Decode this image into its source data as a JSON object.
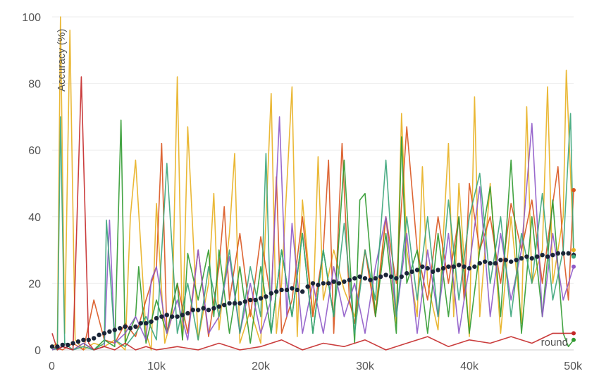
{
  "chart_data": {
    "type": "line",
    "ylabel": "Accuracy (%)",
    "xlabel": "round",
    "xlim": [
      0,
      50000
    ],
    "ylim": [
      0,
      100
    ],
    "x_ticks": [
      {
        "value": 0,
        "label": "0"
      },
      {
        "value": 10000,
        "label": "10k"
      },
      {
        "value": 20000,
        "label": "20k"
      },
      {
        "value": 30000,
        "label": "30k"
      },
      {
        "value": 40000,
        "label": "40k"
      },
      {
        "value": 50000,
        "label": "50k"
      }
    ],
    "y_ticks": [
      {
        "value": 0,
        "label": "0"
      },
      {
        "value": 20,
        "label": "20"
      },
      {
        "value": 40,
        "label": "40"
      },
      {
        "value": 60,
        "label": "60"
      },
      {
        "value": 80,
        "label": "80"
      },
      {
        "value": 100,
        "label": "100"
      }
    ],
    "grid": true,
    "series": [
      {
        "color": "#e8b020",
        "x": [
          0,
          500,
          800,
          1200,
          1700,
          2200,
          3000,
          4000,
          5000,
          6000,
          7000,
          7500,
          8000,
          9000,
          9500,
          10000,
          10800,
          11500,
          12000,
          12500,
          13000,
          14000,
          15000,
          15500,
          16000,
          17000,
          17500,
          18000,
          19000,
          20000,
          21000,
          21500,
          22000,
          23000,
          23500,
          24000,
          25000,
          25500,
          26000,
          27000,
          28000,
          29000,
          30000,
          31000,
          32000,
          33000,
          33500,
          34000,
          35000,
          35500,
          36000,
          37000,
          38000,
          38500,
          39000,
          40000,
          40500,
          41000,
          42000,
          43000,
          44000,
          45000,
          45500,
          46000,
          47000,
          47500,
          48000,
          49000,
          49300,
          50000
        ],
        "y": [
          1,
          2,
          100,
          5,
          96,
          3,
          0,
          2,
          1,
          3,
          0,
          40,
          57,
          5,
          0,
          44,
          2,
          10,
          82,
          3,
          67,
          3,
          20,
          47,
          6,
          35,
          59,
          2,
          12,
          2,
          77,
          5,
          20,
          79,
          4,
          45,
          10,
          58,
          15,
          30,
          18,
          10,
          30,
          12,
          40,
          8,
          71,
          30,
          10,
          55,
          20,
          6,
          62,
          10,
          50,
          4,
          76,
          10,
          50,
          5,
          40,
          8,
          73,
          20,
          30,
          79,
          20,
          40,
          84,
          30
        ]
      },
      {
        "color": "#d9541e",
        "x": [
          0,
          1000,
          2000,
          3000,
          4000,
          5000,
          6000,
          7000,
          8000,
          9000,
          10000,
          10500,
          11000,
          12000,
          13000,
          14000,
          15000,
          16000,
          16500,
          17000,
          18000,
          19000,
          20000,
          21000,
          21500,
          22000,
          23000,
          24000,
          25000,
          26000,
          26500,
          27000,
          27800,
          28500,
          29000,
          30000,
          31000,
          32000,
          33000,
          34000,
          35000,
          36000,
          37000,
          38000,
          39000,
          39500,
          40000,
          41000,
          42000,
          43000,
          44000,
          45000,
          46000,
          47000,
          48000,
          48500,
          49000,
          49500,
          50000
        ],
        "y": [
          1,
          0,
          2,
          0,
          15,
          3,
          2,
          8,
          4,
          15,
          25,
          62,
          5,
          20,
          5,
          30,
          4,
          25,
          43,
          15,
          35,
          10,
          34,
          15,
          52,
          5,
          15,
          40,
          10,
          30,
          57,
          5,
          62,
          15,
          8,
          30,
          10,
          40,
          20,
          67,
          30,
          15,
          40,
          20,
          40,
          15,
          50,
          30,
          40,
          20,
          44,
          30,
          45,
          20,
          44,
          55,
          30,
          15,
          48
        ]
      },
      {
        "color": "#2f9a2f",
        "x": [
          0,
          1000,
          2000,
          3000,
          4000,
          5000,
          6000,
          6600,
          7000,
          8000,
          8300,
          9000,
          10000,
          11000,
          12000,
          12500,
          13000,
          14000,
          15000,
          15500,
          16000,
          17000,
          18000,
          19000,
          20000,
          21000,
          22000,
          23000,
          24000,
          25000,
          26000,
          27000,
          28000,
          29000,
          29500,
          30000,
          31000,
          32000,
          33000,
          33500,
          34000,
          35000,
          36000,
          37000,
          38000,
          39000,
          40000,
          41000,
          42000,
          43000,
          44000,
          45000,
          46000,
          47000,
          48000,
          49000,
          49500,
          50000
        ],
        "y": [
          0,
          1,
          0,
          2,
          0,
          3,
          1,
          69,
          2,
          10,
          25,
          2,
          15,
          5,
          20,
          3,
          29,
          15,
          30,
          10,
          30,
          5,
          25,
          2,
          25,
          5,
          30,
          10,
          35,
          5,
          30,
          10,
          57,
          2,
          45,
          47,
          10,
          35,
          5,
          64,
          20,
          30,
          5,
          35,
          10,
          40,
          5,
          30,
          49,
          10,
          57,
          5,
          40,
          10,
          45,
          5,
          1,
          3
        ]
      },
      {
        "color": "#8e59c8",
        "x": [
          0,
          1000,
          2000,
          3000,
          4000,
          5000,
          5500,
          6000,
          7000,
          8000,
          9000,
          9500,
          10000,
          11000,
          12000,
          13000,
          14000,
          15000,
          16000,
          17000,
          18000,
          19000,
          20000,
          21000,
          21800,
          22500,
          23000,
          24000,
          25000,
          26000,
          27000,
          28000,
          29000,
          30000,
          31000,
          32000,
          33000,
          34000,
          35000,
          36000,
          37000,
          38000,
          39000,
          40000,
          41000,
          42000,
          43000,
          44000,
          45000,
          46000,
          47000,
          48000,
          49000,
          50000
        ],
        "y": [
          0,
          1,
          0,
          2,
          0,
          1,
          39,
          2,
          5,
          10,
          3,
          21,
          25,
          5,
          15,
          3,
          30,
          5,
          10,
          28,
          5,
          20,
          5,
          15,
          70,
          10,
          38,
          5,
          20,
          5,
          25,
          10,
          20,
          5,
          25,
          40,
          10,
          35,
          5,
          30,
          10,
          35,
          5,
          25,
          49,
          10,
          35,
          15,
          30,
          68,
          10,
          35,
          15,
          25
        ]
      },
      {
        "color": "#3aa57a",
        "x": [
          0,
          500,
          800,
          1200,
          2000,
          3000,
          4000,
          5000,
          5200,
          6000,
          7000,
          8000,
          9000,
          10000,
          11000,
          12000,
          13000,
          14000,
          15000,
          16000,
          17000,
          18000,
          19000,
          20000,
          20500,
          21000,
          22000,
          23000,
          24000,
          25000,
          26000,
          27000,
          28000,
          29000,
          30000,
          31000,
          32000,
          33000,
          34000,
          35000,
          36000,
          37000,
          38000,
          39000,
          40000,
          41000,
          42000,
          43000,
          44000,
          45000,
          46000,
          47000,
          48000,
          49000,
          49700,
          50000
        ],
        "y": [
          1,
          0,
          70,
          2,
          0,
          1,
          0,
          2,
          39,
          3,
          1,
          5,
          10,
          3,
          56,
          5,
          20,
          3,
          25,
          10,
          30,
          5,
          25,
          10,
          59,
          5,
          30,
          10,
          35,
          5,
          30,
          10,
          38,
          5,
          30,
          15,
          57,
          10,
          40,
          15,
          40,
          10,
          45,
          15,
          40,
          53,
          20,
          40,
          10,
          35,
          20,
          47,
          15,
          30,
          71,
          28
        ]
      },
      {
        "color": "#c42828",
        "x": [
          0,
          500,
          1000,
          2000,
          2800,
          3500,
          4000,
          5000,
          6000,
          7000,
          8000,
          9000,
          10000,
          12000,
          14000,
          16000,
          18000,
          20000,
          22000,
          24000,
          26000,
          28000,
          30000,
          32000,
          34000,
          36000,
          38000,
          40000,
          42000,
          44000,
          46000,
          48000,
          50000
        ],
        "y": [
          5,
          0,
          1,
          0,
          82,
          2,
          0,
          1,
          0,
          2,
          0,
          1,
          0,
          1,
          0,
          2,
          0,
          1,
          3,
          0,
          2,
          1,
          3,
          0,
          2,
          4,
          1,
          3,
          2,
          4,
          2,
          5,
          5
        ]
      }
    ],
    "mean_series": {
      "color": "#1a2538",
      "x": [
        0,
        500,
        1000,
        1500,
        2000,
        2500,
        3000,
        3500,
        4000,
        4500,
        5000,
        5500,
        6000,
        6500,
        7000,
        7500,
        8000,
        8500,
        9000,
        9500,
        10000,
        10500,
        11000,
        11500,
        12000,
        12500,
        13000,
        13500,
        14000,
        14500,
        15000,
        15500,
        16000,
        16500,
        17000,
        17500,
        18000,
        18500,
        19000,
        19500,
        20000,
        20500,
        21000,
        21500,
        22000,
        22500,
        23000,
        23500,
        24000,
        24500,
        25000,
        25500,
        26000,
        26500,
        27000,
        27500,
        28000,
        28500,
        29000,
        29500,
        30000,
        30500,
        31000,
        31500,
        32000,
        32500,
        33000,
        33500,
        34000,
        34500,
        35000,
        35500,
        36000,
        36500,
        37000,
        37500,
        38000,
        38500,
        39000,
        39500,
        40000,
        40500,
        41000,
        41500,
        42000,
        42500,
        43000,
        43500,
        44000,
        44500,
        45000,
        45500,
        46000,
        46500,
        47000,
        47500,
        48000,
        48500,
        49000,
        49500,
        50000
      ],
      "y": [
        1,
        1,
        1.5,
        1.5,
        2,
        2.5,
        3,
        3,
        3.5,
        4.5,
        5,
        5.5,
        6,
        6.5,
        7,
        6.5,
        7,
        8,
        8,
        8.5,
        9.5,
        10,
        10.5,
        10,
        10,
        10.5,
        11,
        12,
        12,
        12.5,
        12,
        12.5,
        13,
        13.5,
        14,
        14,
        14,
        14.5,
        15,
        15,
        15.5,
        16,
        17,
        17.5,
        18,
        18,
        18.5,
        18,
        17.5,
        19,
        20,
        19.5,
        20,
        20,
        20.5,
        20,
        20.5,
        21,
        21.5,
        22,
        21.5,
        21,
        21.5,
        22,
        22.5,
        22,
        21.5,
        22,
        23,
        23.5,
        24,
        25,
        24.5,
        23.5,
        24,
        24.5,
        25,
        25,
        25.5,
        25,
        24.5,
        25,
        26,
        26.5,
        26,
        26,
        27,
        27,
        26.5,
        27,
        27.5,
        28,
        27.5,
        28,
        28.5,
        28,
        28.5,
        29,
        29,
        29,
        28.5
      ]
    }
  }
}
